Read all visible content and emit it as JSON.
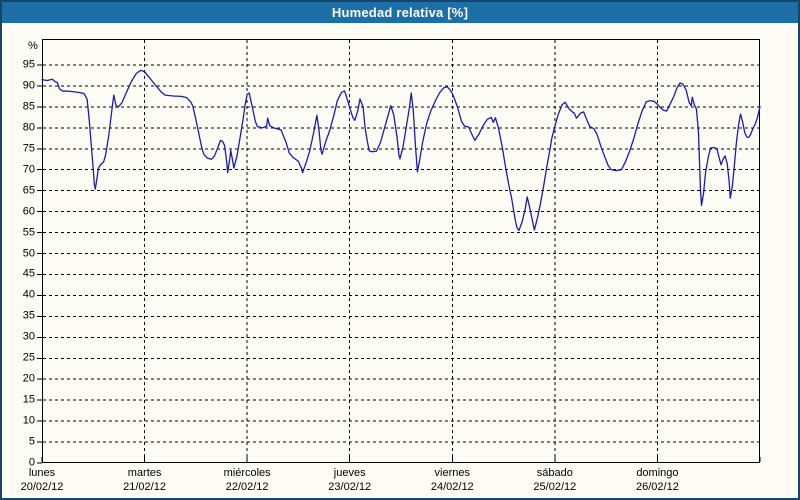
{
  "window": {
    "title": "Humedad relativa [%]"
  },
  "colors": {
    "title_bar_bg": "#1d6fa8",
    "title_text": "#ffffff",
    "frame_border": "#17456b",
    "background": "#fcfcf4",
    "grid": "#000000",
    "axis_text": "#000000",
    "line": "#1c1cb0"
  },
  "chart_data": {
    "type": "line",
    "title": "Humedad relativa [%]",
    "ylabel": "%",
    "y_unit": "%",
    "ylim": [
      0,
      101.2
    ],
    "y_ticks": [
      0,
      5,
      10,
      15,
      20,
      25,
      30,
      35,
      40,
      45,
      50,
      55,
      60,
      65,
      70,
      75,
      80,
      85,
      90,
      95
    ],
    "grid": "dashed",
    "legend": "none",
    "x_days": [
      {
        "name": "lunes",
        "date": "20/02/12"
      },
      {
        "name": "martes",
        "date": "21/02/12"
      },
      {
        "name": "miércoles",
        "date": "22/02/12"
      },
      {
        "name": "jueves",
        "date": "23/02/12"
      },
      {
        "name": "viernes",
        "date": "24/02/12"
      },
      {
        "name": "sábado",
        "date": "25/02/12"
      },
      {
        "name": "domingo",
        "date": "26/02/12"
      }
    ],
    "x_range_days": [
      0,
      7
    ],
    "series": [
      {
        "name": "Humedad relativa",
        "points": [
          [
            0.0,
            91.5
          ],
          [
            0.05,
            91.3
          ],
          [
            0.1,
            91.6
          ],
          [
            0.13,
            91.0
          ],
          [
            0.15,
            90.8
          ],
          [
            0.17,
            89.3
          ],
          [
            0.2,
            88.8
          ],
          [
            0.28,
            88.7
          ],
          [
            0.37,
            88.4
          ],
          [
            0.41,
            88.2
          ],
          [
            0.44,
            86.8
          ],
          [
            0.46,
            82.0
          ],
          [
            0.48,
            76.0
          ],
          [
            0.5,
            70.0
          ],
          [
            0.51,
            66.5
          ],
          [
            0.52,
            65.4
          ],
          [
            0.53,
            67.0
          ],
          [
            0.55,
            70.3
          ],
          [
            0.57,
            71.2
          ],
          [
            0.6,
            71.8
          ],
          [
            0.62,
            73.5
          ],
          [
            0.65,
            78.0
          ],
          [
            0.67,
            82.0
          ],
          [
            0.69,
            86.0
          ],
          [
            0.7,
            87.8
          ],
          [
            0.72,
            85.5
          ],
          [
            0.74,
            84.9
          ],
          [
            0.78,
            86.0
          ],
          [
            0.82,
            88.3
          ],
          [
            0.87,
            91.0
          ],
          [
            0.92,
            93.0
          ],
          [
            0.96,
            93.7
          ],
          [
            1.0,
            93.4
          ],
          [
            1.04,
            92.2
          ],
          [
            1.07,
            91.3
          ],
          [
            1.11,
            90.1
          ],
          [
            1.16,
            88.6
          ],
          [
            1.2,
            87.8
          ],
          [
            1.28,
            87.6
          ],
          [
            1.36,
            87.5
          ],
          [
            1.41,
            87.2
          ],
          [
            1.45,
            86.2
          ],
          [
            1.47,
            85.2
          ],
          [
            1.5,
            82.0
          ],
          [
            1.53,
            78.5
          ],
          [
            1.56,
            75.0
          ],
          [
            1.58,
            73.6
          ],
          [
            1.61,
            72.8
          ],
          [
            1.65,
            72.5
          ],
          [
            1.68,
            73.2
          ],
          [
            1.71,
            75.0
          ],
          [
            1.74,
            77.0
          ],
          [
            1.76,
            76.8
          ],
          [
            1.78,
            75.8
          ],
          [
            1.8,
            72.0
          ],
          [
            1.81,
            69.3
          ],
          [
            1.83,
            72.5
          ],
          [
            1.84,
            74.6
          ],
          [
            1.86,
            72.0
          ],
          [
            1.87,
            70.4
          ],
          [
            1.9,
            73.2
          ],
          [
            1.93,
            77.5
          ],
          [
            1.96,
            82.0
          ],
          [
            1.98,
            85.5
          ],
          [
            2.0,
            88.0
          ],
          [
            2.02,
            88.3
          ],
          [
            2.05,
            85.0
          ],
          [
            2.08,
            81.5
          ],
          [
            2.1,
            80.3
          ],
          [
            2.15,
            80.0
          ],
          [
            2.19,
            80.4
          ],
          [
            2.2,
            82.3
          ],
          [
            2.22,
            80.5
          ],
          [
            2.26,
            80.0
          ],
          [
            2.33,
            79.5
          ],
          [
            2.38,
            76.5
          ],
          [
            2.41,
            74.0
          ],
          [
            2.45,
            72.9
          ],
          [
            2.5,
            72.0
          ],
          [
            2.53,
            70.3
          ],
          [
            2.54,
            69.3
          ],
          [
            2.58,
            72.0
          ],
          [
            2.61,
            74.5
          ],
          [
            2.65,
            79.0
          ],
          [
            2.68,
            83.0
          ],
          [
            2.7,
            79.5
          ],
          [
            2.72,
            74.5
          ],
          [
            2.73,
            73.7
          ],
          [
            2.77,
            77.0
          ],
          [
            2.8,
            79.0
          ],
          [
            2.84,
            82.5
          ],
          [
            2.88,
            86.5
          ],
          [
            2.92,
            88.5
          ],
          [
            2.95,
            88.8
          ],
          [
            2.98,
            86.5
          ],
          [
            3.0,
            84.8
          ],
          [
            3.03,
            82.5
          ],
          [
            3.05,
            81.8
          ],
          [
            3.08,
            84.2
          ],
          [
            3.1,
            86.9
          ],
          [
            3.13,
            85.0
          ],
          [
            3.15,
            80.0
          ],
          [
            3.17,
            77.0
          ],
          [
            3.19,
            74.5
          ],
          [
            3.22,
            74.3
          ],
          [
            3.26,
            74.4
          ],
          [
            3.3,
            76.5
          ],
          [
            3.34,
            80.0
          ],
          [
            3.38,
            83.5
          ],
          [
            3.4,
            85.3
          ],
          [
            3.43,
            83.0
          ],
          [
            3.46,
            78.0
          ],
          [
            3.48,
            73.5
          ],
          [
            3.49,
            72.6
          ],
          [
            3.52,
            75.5
          ],
          [
            3.55,
            80.0
          ],
          [
            3.58,
            84.5
          ],
          [
            3.6,
            88.3
          ],
          [
            3.62,
            84.0
          ],
          [
            3.64,
            76.0
          ],
          [
            3.66,
            69.5
          ],
          [
            3.68,
            72.0
          ],
          [
            3.71,
            76.5
          ],
          [
            3.75,
            81.0
          ],
          [
            3.79,
            84.0
          ],
          [
            3.84,
            86.7
          ],
          [
            3.88,
            88.5
          ],
          [
            3.92,
            89.6
          ],
          [
            3.95,
            89.8
          ],
          [
            3.98,
            89.0
          ],
          [
            4.0,
            88.2
          ],
          [
            4.02,
            87.0
          ],
          [
            4.05,
            85.0
          ],
          [
            4.09,
            81.5
          ],
          [
            4.12,
            80.4
          ],
          [
            4.16,
            80.2
          ],
          [
            4.19,
            78.5
          ],
          [
            4.22,
            77.0
          ],
          [
            4.26,
            78.5
          ],
          [
            4.3,
            80.5
          ],
          [
            4.34,
            82.0
          ],
          [
            4.38,
            82.5
          ],
          [
            4.4,
            81.3
          ],
          [
            4.42,
            82.4
          ],
          [
            4.45,
            80.0
          ],
          [
            4.47,
            77.5
          ],
          [
            4.49,
            75.0
          ],
          [
            4.52,
            70.5
          ],
          [
            4.55,
            66.5
          ],
          [
            4.58,
            63.0
          ],
          [
            4.61,
            58.5
          ],
          [
            4.63,
            56.2
          ],
          [
            4.65,
            55.5
          ],
          [
            4.68,
            57.5
          ],
          [
            4.71,
            60.5
          ],
          [
            4.73,
            63.5
          ],
          [
            4.75,
            61.5
          ],
          [
            4.78,
            58.0
          ],
          [
            4.8,
            55.6
          ],
          [
            4.83,
            58.5
          ],
          [
            4.86,
            62.0
          ],
          [
            4.89,
            66.0
          ],
          [
            4.92,
            70.5
          ],
          [
            4.95,
            74.5
          ],
          [
            4.97,
            77.5
          ],
          [
            5.0,
            80.3
          ],
          [
            5.03,
            83.0
          ],
          [
            5.07,
            85.5
          ],
          [
            5.1,
            86.1
          ],
          [
            5.14,
            84.5
          ],
          [
            5.17,
            83.8
          ],
          [
            5.19,
            83.5
          ],
          [
            5.21,
            82.3
          ],
          [
            5.25,
            83.5
          ],
          [
            5.28,
            83.8
          ],
          [
            5.31,
            82.0
          ],
          [
            5.34,
            80.3
          ],
          [
            5.38,
            79.8
          ],
          [
            5.41,
            78.5
          ],
          [
            5.45,
            75.5
          ],
          [
            5.48,
            73.5
          ],
          [
            5.52,
            71.0
          ],
          [
            5.55,
            70.0
          ],
          [
            5.6,
            69.8
          ],
          [
            5.65,
            70.0
          ],
          [
            5.69,
            72.0
          ],
          [
            5.73,
            74.5
          ],
          [
            5.77,
            77.5
          ],
          [
            5.81,
            81.0
          ],
          [
            5.85,
            84.0
          ],
          [
            5.89,
            86.2
          ],
          [
            5.93,
            86.5
          ],
          [
            5.97,
            86.3
          ],
          [
            6.0,
            85.6
          ],
          [
            6.03,
            84.8
          ],
          [
            6.06,
            84.2
          ],
          [
            6.09,
            84.0
          ],
          [
            6.12,
            85.5
          ],
          [
            6.16,
            87.5
          ],
          [
            6.19,
            89.5
          ],
          [
            6.22,
            90.7
          ],
          [
            6.25,
            90.4
          ],
          [
            6.28,
            89.0
          ],
          [
            6.31,
            86.0
          ],
          [
            6.33,
            85.3
          ],
          [
            6.34,
            87.3
          ],
          [
            6.36,
            85.5
          ],
          [
            6.38,
            84.5
          ],
          [
            6.4,
            79.0
          ],
          [
            6.41,
            72.0
          ],
          [
            6.42,
            65.0
          ],
          [
            6.43,
            61.5
          ],
          [
            6.45,
            64.5
          ],
          [
            6.47,
            69.5
          ],
          [
            6.5,
            73.5
          ],
          [
            6.52,
            75.2
          ],
          [
            6.55,
            75.3
          ],
          [
            6.58,
            75.0
          ],
          [
            6.6,
            73.0
          ],
          [
            6.62,
            71.2
          ],
          [
            6.64,
            72.5
          ],
          [
            6.66,
            73.3
          ],
          [
            6.68,
            71.5
          ],
          [
            6.7,
            67.0
          ],
          [
            6.71,
            63.2
          ],
          [
            6.73,
            66.0
          ],
          [
            6.75,
            71.0
          ],
          [
            6.77,
            76.5
          ],
          [
            6.79,
            80.5
          ],
          [
            6.81,
            83.3
          ],
          [
            6.83,
            81.5
          ],
          [
            6.85,
            79.0
          ],
          [
            6.87,
            77.8
          ],
          [
            6.89,
            77.7
          ],
          [
            6.91,
            78.5
          ],
          [
            6.93,
            79.8
          ],
          [
            6.95,
            80.7
          ],
          [
            6.97,
            82.0
          ],
          [
            6.99,
            84.0
          ],
          [
            7.0,
            85.1
          ]
        ]
      }
    ]
  }
}
